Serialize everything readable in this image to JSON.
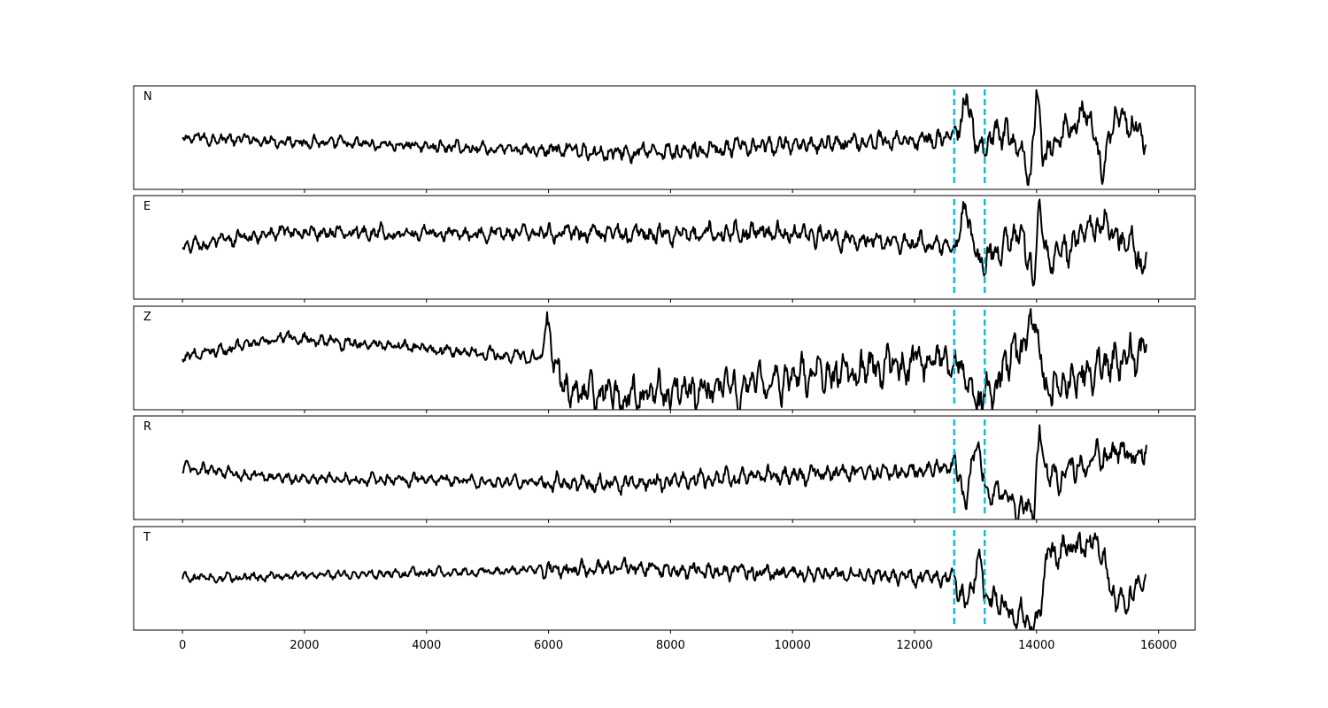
{
  "chart_data": {
    "type": "line",
    "title": "",
    "xlabel": "",
    "ylabel": "",
    "xlim": [
      -800,
      16600
    ],
    "x_ticks": [
      0,
      2000,
      4000,
      6000,
      8000,
      10000,
      12000,
      14000,
      16000
    ],
    "x_tick_labels": [
      "0",
      "2000",
      "4000",
      "6000",
      "8000",
      "10000",
      "12000",
      "14000",
      "16000"
    ],
    "x_range": [
      0,
      15800
    ],
    "y_ticks_shown": false,
    "grid": false,
    "legend": "none",
    "trace_color": "#000000",
    "marker_color": "#17becf",
    "markers": [
      12650,
      13150
    ],
    "channels": [
      {
        "label": "N",
        "ylim": [
          -1.0,
          1.0
        ],
        "key_points": [
          [
            0,
            0.0
          ],
          [
            7200,
            -0.3
          ],
          [
            12650,
            0.0
          ],
          [
            12850,
            0.75
          ],
          [
            13000,
            -0.1
          ],
          [
            13150,
            -0.2
          ],
          [
            13500,
            0.15
          ],
          [
            13900,
            -0.7
          ],
          [
            14000,
            0.95
          ],
          [
            14100,
            -0.4
          ],
          [
            14800,
            0.55
          ],
          [
            15100,
            -0.6
          ],
          [
            15300,
            0.5
          ],
          [
            15800,
            0.0
          ]
        ],
        "noise_before": 0.15,
        "noise_mid": 0.22,
        "noise_after": 0.35
      },
      {
        "label": "E",
        "ylim": [
          -1.0,
          1.0
        ],
        "key_points": [
          [
            0,
            0.0
          ],
          [
            1600,
            0.3
          ],
          [
            7200,
            0.25
          ],
          [
            9600,
            0.3
          ],
          [
            12650,
            0.0
          ],
          [
            12850,
            0.7
          ],
          [
            13000,
            -0.2
          ],
          [
            13150,
            -0.3
          ],
          [
            13800,
            0.3
          ],
          [
            13950,
            -0.85
          ],
          [
            14050,
            0.85
          ],
          [
            14200,
            -0.3
          ],
          [
            15100,
            0.55
          ],
          [
            15800,
            -0.35
          ]
        ],
        "noise_before": 0.18,
        "noise_mid": 0.25,
        "noise_after": 0.4
      },
      {
        "label": "Z",
        "ylim": [
          -1.0,
          1.0
        ],
        "key_points": [
          [
            0,
            0.0
          ],
          [
            1600,
            0.4
          ],
          [
            5900,
            0.0
          ],
          [
            5950,
            0.8
          ],
          [
            6200,
            -0.55
          ],
          [
            7200,
            -0.75
          ],
          [
            8700,
            -0.6
          ],
          [
            12650,
            0.0
          ],
          [
            13050,
            -0.85
          ],
          [
            13150,
            -0.8
          ],
          [
            14000,
            0.75
          ],
          [
            14150,
            -0.65
          ],
          [
            15800,
            0.2
          ]
        ],
        "noise_before": 0.16,
        "noise_mid": 0.45,
        "noise_after": 0.5
      },
      {
        "label": "R",
        "ylim": [
          -1.0,
          1.0
        ],
        "key_points": [
          [
            0,
            0.0
          ],
          [
            1600,
            -0.2
          ],
          [
            7300,
            -0.3
          ],
          [
            12650,
            0.0
          ],
          [
            12850,
            -0.6
          ],
          [
            13000,
            0.55
          ],
          [
            13150,
            -0.3
          ],
          [
            13950,
            -0.9
          ],
          [
            14050,
            0.75
          ],
          [
            14200,
            -0.25
          ],
          [
            15200,
            0.3
          ],
          [
            15800,
            0.25
          ]
        ],
        "noise_before": 0.15,
        "noise_mid": 0.22,
        "noise_after": 0.35
      },
      {
        "label": "T",
        "ylim": [
          -1.0,
          1.0
        ],
        "key_points": [
          [
            0,
            0.0
          ],
          [
            7200,
            0.2
          ],
          [
            12650,
            0.0
          ],
          [
            12850,
            -0.5
          ],
          [
            13100,
            0.45
          ],
          [
            13150,
            -0.3
          ],
          [
            14000,
            -0.9
          ],
          [
            14200,
            0.5
          ],
          [
            15050,
            0.7
          ],
          [
            15300,
            -0.55
          ],
          [
            15800,
            -0.1
          ]
        ],
        "noise_before": 0.12,
        "noise_mid": 0.2,
        "noise_after": 0.35
      }
    ]
  }
}
